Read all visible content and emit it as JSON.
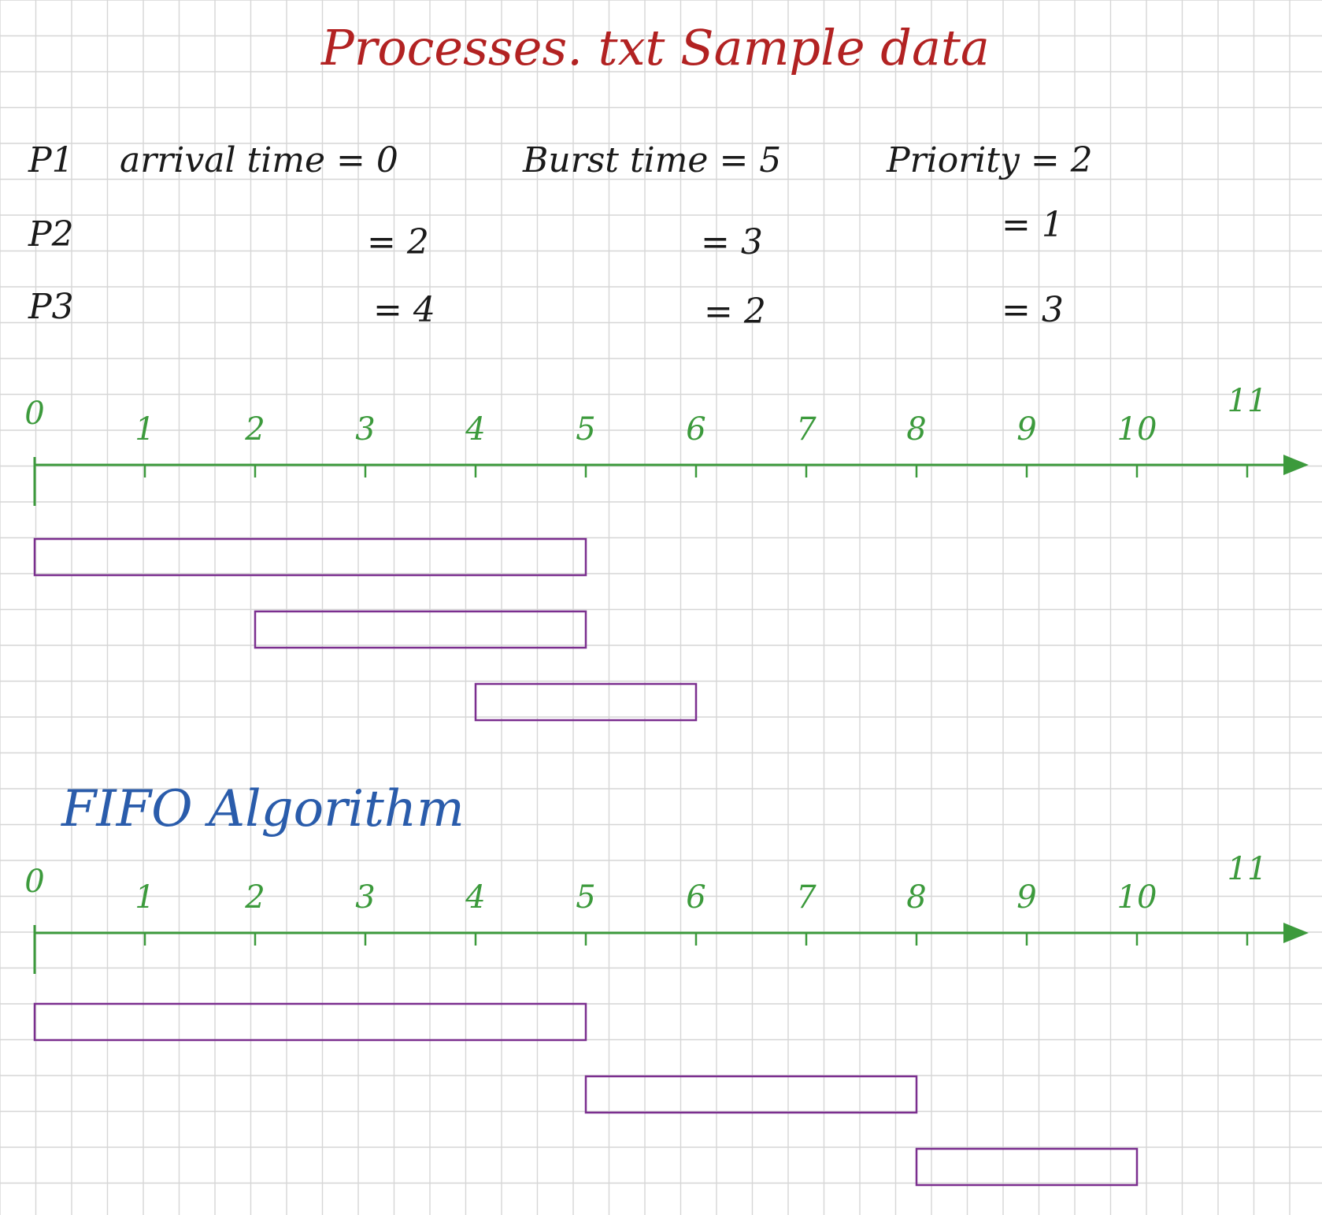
{
  "title": "Processes. txt   Sample data",
  "process_table": {
    "rows": [
      {
        "process": "P1",
        "arrival": "arrival  time = 0",
        "burst": "Burst  time = 5",
        "priority": "Priority = 2"
      },
      {
        "process": "P2",
        "arrival": "= 2",
        "burst": "= 3",
        "priority": "= 1"
      },
      {
        "process": "P3",
        "arrival": "= 4",
        "burst": "= 2",
        "priority": "= 3"
      }
    ]
  },
  "algorithm_heading": "FIFO  Algorithm",
  "colors": {
    "title": "#b22222",
    "text": "#1a1a1a",
    "heading": "#2a5cab",
    "axis": "#3c9a3c",
    "bar": "#7b2f8f",
    "grid": "#d6d6d6"
  },
  "chart_data": [
    {
      "type": "gantt",
      "ticks": [
        "0",
        "1",
        "2",
        "3",
        "4",
        "5",
        "6",
        "7",
        "8",
        "9",
        "10",
        "11"
      ],
      "xlim": [
        0,
        11
      ],
      "bars": [
        {
          "start": 0,
          "end": 5
        },
        {
          "start": 2,
          "end": 5
        },
        {
          "start": 4,
          "end": 6
        }
      ]
    },
    {
      "type": "gantt",
      "ticks": [
        "0",
        "1",
        "2",
        "3",
        "4",
        "5",
        "6",
        "7",
        "8",
        "9",
        "10",
        "11"
      ],
      "xlim": [
        0,
        11
      ],
      "bars": [
        {
          "start": 0,
          "end": 5
        },
        {
          "start": 5,
          "end": 8
        },
        {
          "start": 8,
          "end": 10
        }
      ]
    }
  ]
}
